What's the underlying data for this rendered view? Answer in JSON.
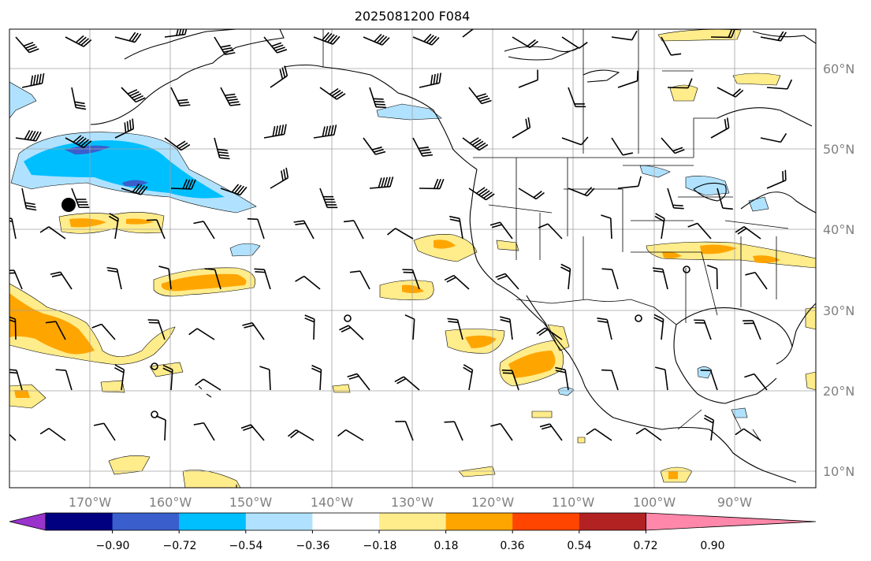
{
  "title": "2025081200 F084",
  "map": {
    "lat_labels": [
      "60°N",
      "50°N",
      "40°N",
      "30°N",
      "20°N",
      "10°N"
    ],
    "lon_labels": [
      "170°W",
      "160°W",
      "150°W",
      "140°W",
      "130°W",
      "120°W",
      "110°W",
      "100°W",
      "90°W"
    ],
    "grid": true,
    "coastline_color": "#000000",
    "border_color": "#000000",
    "grid_color": "#a0a0a0"
  },
  "colorbar": {
    "orientation": "horizontal",
    "extend": "both",
    "colors": [
      "#9933cc",
      "#000080",
      "#3a5fcd",
      "#00bfff",
      "#b0e2ff",
      "#ffffff",
      "#ffec8b",
      "#ffa500",
      "#ff4500",
      "#b22222",
      "#ff88aa"
    ],
    "tick_labels": [
      "−0.90",
      "−0.72",
      "−0.54",
      "−0.36",
      "−0.18",
      "0.18",
      "0.36",
      "0.54",
      "0.72",
      "0.90"
    ]
  },
  "chart_data": {
    "type": "heatmap",
    "title": "2025081200 F084",
    "xlabel": "",
    "ylabel": "",
    "x_range_lon": [
      -180,
      -80
    ],
    "y_range_lat": [
      7,
      65
    ],
    "levels": [
      -0.9,
      -0.72,
      -0.54,
      -0.36,
      -0.18,
      0.18,
      0.36,
      0.54,
      0.72,
      0.9
    ],
    "overlays": [
      "wind barbs",
      "coastlines",
      "country borders",
      "US state borders",
      "circle markers (calm winds)"
    ]
  }
}
